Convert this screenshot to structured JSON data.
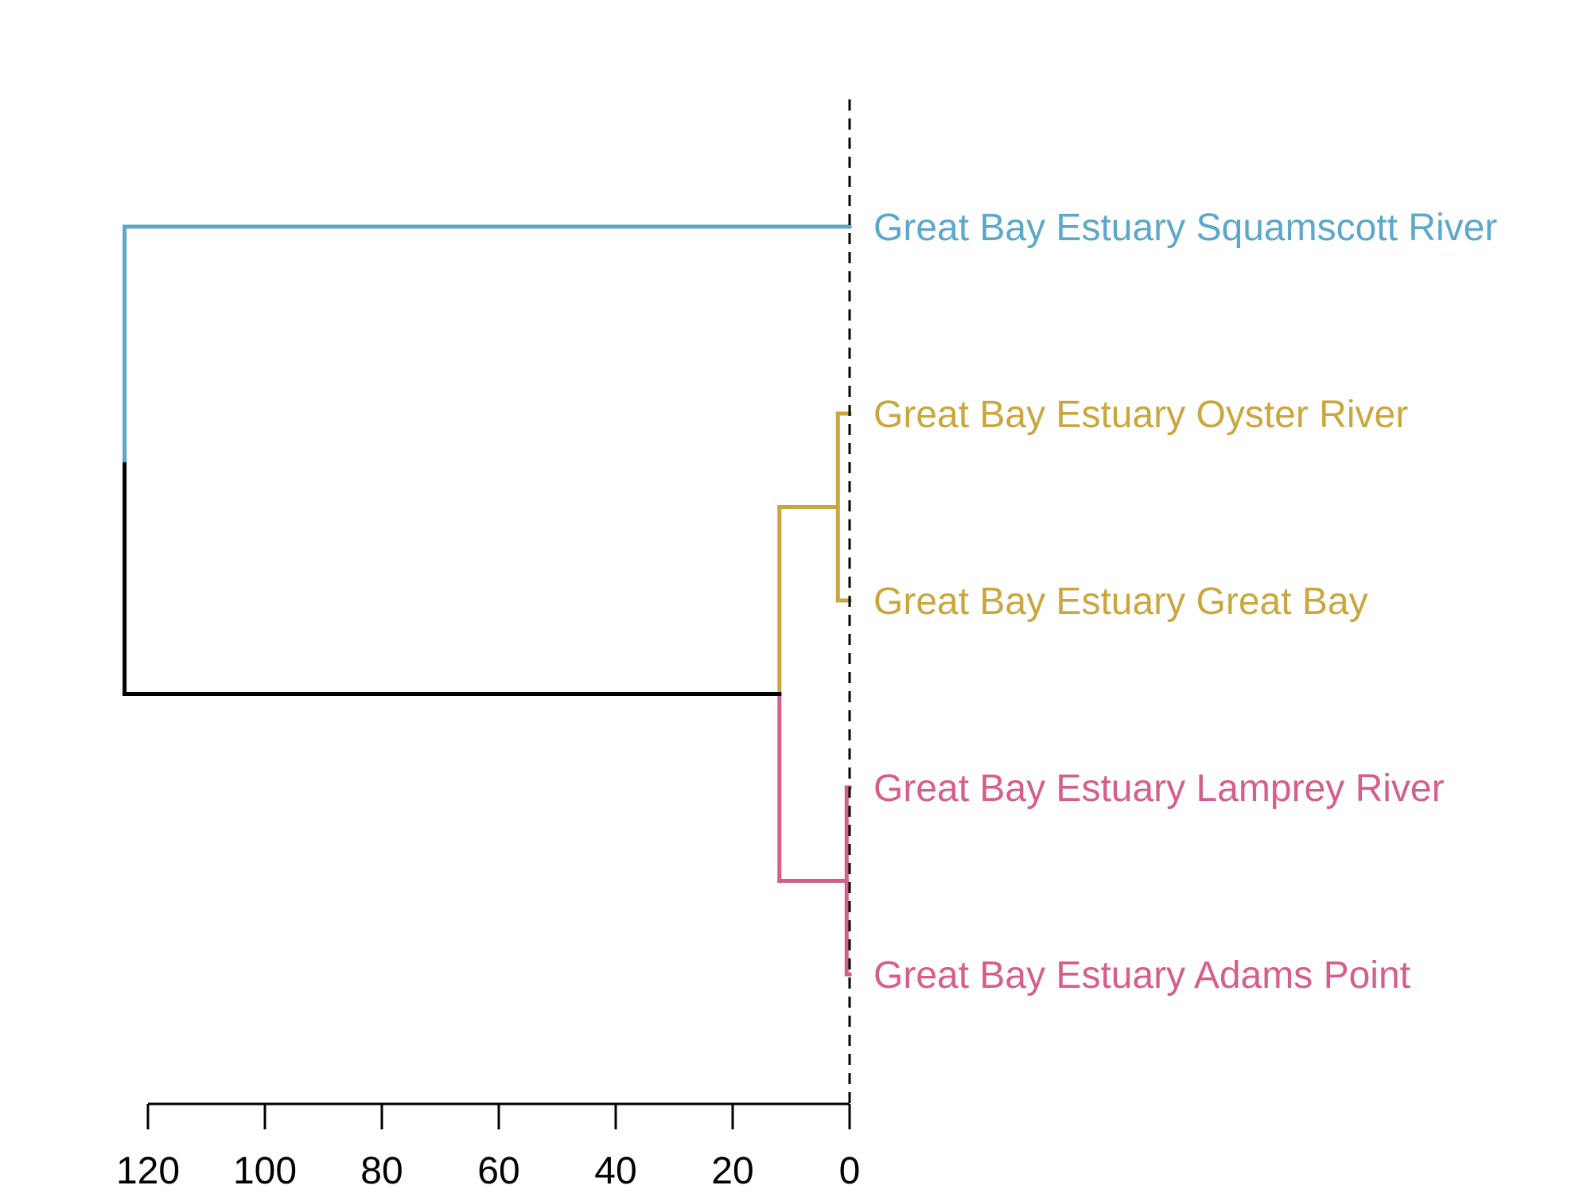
{
  "chart_data": {
    "type": "dendrogram",
    "orientation": "horizontal",
    "x_axis": {
      "ticks": [
        120,
        100,
        80,
        60,
        40,
        20,
        0
      ],
      "reversed": true
    },
    "reference_line": {
      "x": 0,
      "style": "dashed"
    },
    "leaves": [
      {
        "label": "Great Bay Estuary Squamscott River",
        "cluster": "blue"
      },
      {
        "label": "Great Bay Estuary Oyster River",
        "cluster": "gold"
      },
      {
        "label": "Great Bay Estuary Great Bay",
        "cluster": "gold"
      },
      {
        "label": "Great Bay Estuary Lamprey River",
        "cluster": "pink"
      },
      {
        "label": "Great Bay Estuary Adams Point",
        "cluster": "pink"
      }
    ],
    "merges": [
      {
        "members": [
          "Great Bay Estuary Oyster River",
          "Great Bay Estuary Great Bay"
        ],
        "height": 2,
        "cluster": "gold"
      },
      {
        "members": [
          "Great Bay Estuary Lamprey River",
          "Great Bay Estuary Adams Point"
        ],
        "height": 0.5,
        "cluster": "pink"
      },
      {
        "members": [
          "gold",
          "pink"
        ],
        "height": 12,
        "cluster": "pink-gold"
      },
      {
        "members": [
          "Great Bay Estuary Squamscott River",
          "gold+pink"
        ],
        "height": 124,
        "cluster": "root"
      }
    ],
    "colors": {
      "blue": "#5ba8c9",
      "gold": "#c9a73e",
      "pink": "#d55e8a",
      "root": "#000000"
    }
  }
}
